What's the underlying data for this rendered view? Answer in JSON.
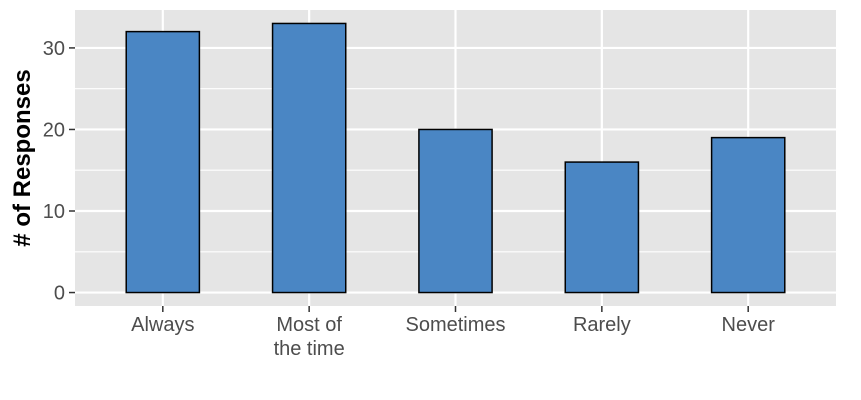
{
  "chart_data": {
    "type": "bar",
    "categories": [
      "Always",
      "Most of\nthe time",
      "Sometimes",
      "Rarely",
      "Never"
    ],
    "values": [
      32,
      33,
      20,
      16,
      19
    ],
    "title": "",
    "xlabel": "",
    "ylabel": "# of Responses",
    "ylim": [
      -1.65,
      34.65
    ],
    "yticks": [
      0,
      10,
      20,
      30
    ],
    "grid": true,
    "colors": {
      "panel": "#E5E5E5",
      "grid_major": "#FFFFFF",
      "bar_fill": "#4A86C4",
      "bar_outline": "#000000",
      "tick_text": "#4D4D4D",
      "axis_title": "#000000"
    }
  }
}
